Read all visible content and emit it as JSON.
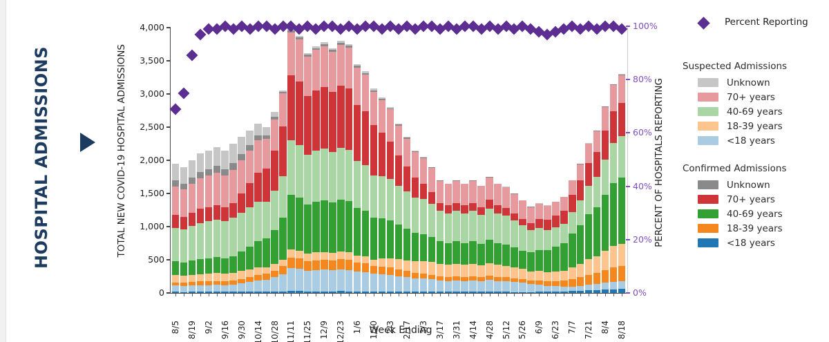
{
  "page": {
    "title_vertical": "HOSPITAL ADMISSIONS"
  },
  "colors": {
    "navy": "#1d3a5f",
    "diamond_purple": "#5c2e91",
    "axis_purple": "#7d4ec4",
    "axis_dark": "#1e1e1e"
  },
  "legend": {
    "percent_label": "Percent Reporting",
    "groups": [
      {
        "title": "Suspected Admissions",
        "items": [
          {
            "label": "Unknown",
            "color": "#c6c6c6"
          },
          {
            "label": "70+ years",
            "color": "#e79a9d"
          },
          {
            "label": "40-69 years",
            "color": "#a9d6a4"
          },
          {
            "label": "18-39 years",
            "color": "#fdc48e"
          },
          {
            "label": "<18 years",
            "color": "#a9cce3"
          }
        ]
      },
      {
        "title": "Confirmed Admissions",
        "items": [
          {
            "label": "Unknown",
            "color": "#8a8a8a"
          },
          {
            "label": "70+ years",
            "color": "#cf3438"
          },
          {
            "label": "40-69 years",
            "color": "#33a033"
          },
          {
            "label": "18-39 years",
            "color": "#f5871f"
          },
          {
            "label": "<18 years",
            "color": "#2077b4"
          }
        ]
      }
    ]
  },
  "chart_data": {
    "type": "bar",
    "title": "",
    "xlabel": "Week Ending",
    "ylabel_left": "TOTAL NEW COVID-19 HOSPITAL ADMISSIONS",
    "ylabel_right": "PERCENT OF HOSPITALS REPORTING",
    "ylim_left": [
      0,
      4000
    ],
    "ylim_right": [
      0,
      100
    ],
    "grid": false,
    "legend_position": "right",
    "ytick_values_left": [
      0,
      500,
      1000,
      1500,
      2000,
      2500,
      3000,
      3500,
      4000
    ],
    "ytick_labels_left": [
      "0",
      "500",
      "1,000",
      "1,500",
      "2,000",
      "2,500",
      "3,000",
      "3,500",
      "4,000"
    ],
    "ytick_values_right": [
      0,
      20,
      40,
      60,
      80,
      100
    ],
    "ytick_labels_right": [
      "0%",
      "20%",
      "40%",
      "60%",
      "80%",
      "100%"
    ],
    "x_tick_labels": [
      "8/5",
      "8/19",
      "9/2",
      "9/16",
      "9/30",
      "10/14",
      "10/28",
      "11/11",
      "11/25",
      "12/9",
      "12/23",
      "1/6",
      "1/20",
      "2/3",
      "2/17",
      "3/3",
      "3/17",
      "3/31",
      "4/14",
      "4/28",
      "5/12",
      "5/26",
      "6/9",
      "6/23",
      "7/7",
      "7/21",
      "8/4",
      "8/18"
    ],
    "bars_count": 55,
    "label_every_n_bars": 2,
    "series": [
      {
        "name": "Confirmed <18 years",
        "color": "#2077b4",
        "values": [
          16,
          15,
          16,
          17,
          17,
          18,
          17,
          18,
          19,
          20,
          19,
          18,
          19,
          21,
          28,
          27,
          25,
          26,
          26,
          26,
          27,
          26,
          24,
          23,
          22,
          22,
          22,
          20,
          20,
          19,
          18,
          18,
          17,
          17,
          17,
          17,
          17,
          16,
          18,
          17,
          16,
          15,
          14,
          15,
          17,
          18,
          21,
          24,
          31,
          35,
          41,
          44,
          51,
          57,
          59
        ]
      },
      {
        "name": "Suspected <18 years",
        "color": "#a9cce3",
        "values": [
          94,
          91,
          96,
          101,
          103,
          106,
          103,
          108,
          127,
          149,
          171,
          183,
          218,
          263,
          343,
          334,
          311,
          320,
          325,
          317,
          327,
          323,
          297,
          287,
          265,
          260,
          251,
          232,
          219,
          204,
          198,
          186,
          170,
          165,
          170,
          165,
          170,
          162,
          175,
          165,
          160,
          150,
          140,
          116,
          106,
          90,
          79,
          68,
          61,
          70,
          81,
          88,
          101,
          113,
          119
        ]
      },
      {
        "name": "Confirmed 18-39 years",
        "color": "#f5871f",
        "values": [
          51,
          49,
          52,
          55,
          56,
          57,
          56,
          59,
          66,
          76,
          84,
          88,
          101,
          122,
          160,
          155,
          145,
          149,
          151,
          148,
          152,
          150,
          138,
          134,
          123,
          117,
          109,
          99,
          90,
          82,
          77,
          71,
          63,
          61,
          63,
          61,
          63,
          60,
          65,
          61,
          59,
          56,
          52,
          55,
          64,
          69,
          80,
          91,
          116,
          133,
          154,
          167,
          191,
          214,
          224
        ]
      },
      {
        "name": "Suspected 18-39 years",
        "color": "#fdc48e",
        "values": [
          105,
          103,
          108,
          113,
          116,
          119,
          116,
          122,
          118,
          113,
          108,
          98,
          96,
          95,
          124,
          120,
          112,
          115,
          117,
          114,
          118,
          116,
          107,
          104,
          95,
          121,
          143,
          156,
          166,
          172,
          185,
          190,
          187,
          182,
          187,
          182,
          187,
          178,
          193,
          182,
          176,
          165,
          154,
          142,
          146,
          141,
          146,
          152,
          177,
          203,
          235,
          255,
          293,
          328,
          343
        ]
      },
      {
        "name": "Confirmed 40-69 years",
        "color": "#33a033",
        "values": [
          211,
          205,
          216,
          227,
          232,
          238,
          232,
          243,
          291,
          345,
          400,
          433,
          519,
          630,
          822,
          799,
          746,
          766,
          779,
          760,
          783,
          773,
          711,
          688,
          634,
          605,
          573,
          520,
          477,
          435,
          413,
          382,
          340,
          330,
          340,
          330,
          340,
          324,
          350,
          330,
          320,
          300,
          280,
          282,
          315,
          330,
          368,
          411,
          510,
          585,
          678,
          735,
          845,
          945,
          990
        ]
      },
      {
        "name": "Suspected 40-69 years",
        "color": "#a9d6a4",
        "values": [
          505,
          492,
          518,
          544,
          557,
          570,
          557,
          583,
          588,
          590,
          593,
          560,
          587,
          630,
          822,
          799,
          746,
          766,
          779,
          760,
          783,
          773,
          711,
          688,
          634,
          631,
          622,
          587,
          559,
          529,
          521,
          498,
          459,
          446,
          459,
          446,
          459,
          437,
          473,
          446,
          432,
          405,
          378,
          334,
          328,
          304,
          299,
          295,
          323,
          371,
          429,
          466,
          535,
          599,
          627
        ]
      },
      {
        "name": "Confirmed 70+ years",
        "color": "#cf3438",
        "values": [
          195,
          190,
          200,
          210,
          215,
          220,
          215,
          225,
          291,
          363,
          440,
          493,
          603,
          750,
          978,
          951,
          887,
          911,
          926,
          904,
          931,
          919,
          845,
          818,
          755,
          659,
          566,
          462,
          374,
          296,
          238,
          180,
          124,
          120,
          124,
          120,
          124,
          118,
          128,
          120,
          117,
          110,
          102,
          112,
          135,
          149,
          174,
          203,
          260,
          298,
          346,
          375,
          431,
          482,
          505
        ]
      },
      {
        "name": "Suspected 70+ years",
        "color": "#e79a9d",
        "values": [
          429,
          418,
          440,
          462,
          473,
          484,
          473,
          495,
          496,
          492,
          490,
          455,
          472,
          502,
          654,
          636,
          594,
          610,
          620,
          605,
          623,
          615,
          566,
          548,
          505,
          496,
          482,
          449,
          423,
          394,
          383,
          363,
          332,
          322,
          332,
          322,
          332,
          316,
          341,
          322,
          312,
          293,
          273,
          239,
          233,
          213,
          207,
          201,
          216,
          248,
          287,
          311,
          357,
          400,
          419
        ]
      },
      {
        "name": "Confirmed Unknown",
        "color": "#8a8a8a",
        "values": [
          90,
          87,
          92,
          97,
          99,
          101,
          99,
          104,
          94,
          81,
          69,
          50,
          38,
          24,
          32,
          31,
          29,
          30,
          30,
          30,
          30,
          30,
          28,
          27,
          25,
          22,
          18,
          15,
          12,
          9,
          7,
          5,
          3,
          3,
          3,
          3,
          3,
          3,
          4,
          3,
          3,
          3,
          3,
          3,
          3,
          3,
          3,
          3,
          3,
          4,
          5,
          5,
          6,
          6,
          7
        ]
      },
      {
        "name": "Suspected Unknown",
        "color": "#c6c6c6",
        "values": [
          255,
          249,
          262,
          275,
          282,
          288,
          282,
          295,
          261,
          221,
          176,
          120,
          76,
          21,
          28,
          27,
          25,
          26,
          26,
          26,
          27,
          26,
          24,
          23,
          22,
          19,
          17,
          14,
          12,
          10,
          8,
          7,
          5,
          5,
          5,
          5,
          5,
          5,
          5,
          5,
          5,
          5,
          4,
          4,
          4,
          3,
          3,
          3,
          3,
          4,
          5,
          5,
          6,
          6,
          7
        ]
      }
    ],
    "percent_reporting": {
      "name": "Percent Reporting",
      "color": "#5c2e91",
      "values": [
        69,
        75,
        89,
        97,
        99,
        99,
        100,
        99,
        100,
        99,
        100,
        100,
        99,
        100,
        100,
        99,
        100,
        99,
        100,
        100,
        99,
        100,
        99,
        100,
        100,
        99,
        100,
        99,
        100,
        99,
        100,
        100,
        99,
        100,
        99,
        100,
        100,
        99,
        100,
        99,
        100,
        99,
        100,
        99,
        98,
        97,
        98,
        99,
        100,
        99,
        100,
        99,
        100,
        100,
        99
      ]
    }
  }
}
